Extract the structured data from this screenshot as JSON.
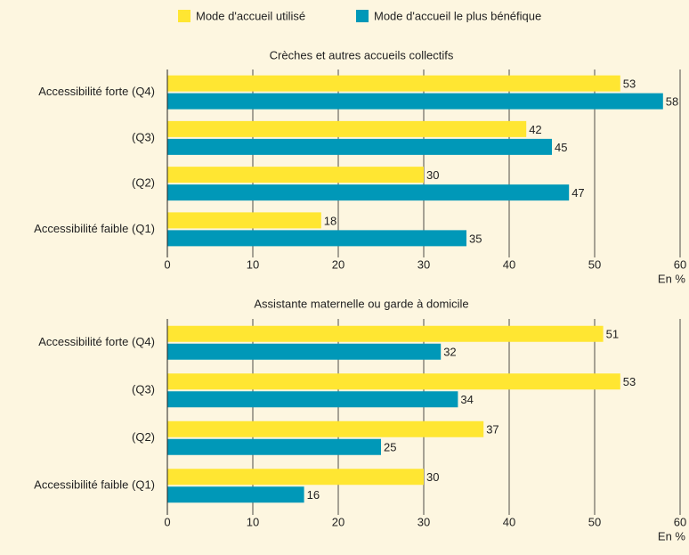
{
  "legend": [
    {
      "name": "Mode d'accueil utilisé",
      "color": "#ffe632"
    },
    {
      "name": "Mode d'accueil le plus bénéfique",
      "color": "#0098b8"
    }
  ],
  "chart_data": [
    {
      "type": "bar",
      "orientation": "horizontal",
      "title": "Crèches et autres accueils collectifs",
      "categories": [
        "Accessibilité forte (Q4)",
        "(Q3)",
        "(Q2)",
        "Accessibilité faible (Q1)"
      ],
      "series": [
        {
          "values": [
            53,
            42,
            30,
            18
          ]
        },
        {
          "values": [
            58,
            45,
            47,
            35
          ]
        }
      ],
      "xlim": [
        0,
        60
      ],
      "xticks": [
        0,
        10,
        20,
        30,
        40,
        50,
        60
      ],
      "xlabel": "En %",
      "grid": true
    },
    {
      "type": "bar",
      "orientation": "horizontal",
      "title": "Assistante maternelle ou garde à domicile",
      "categories": [
        "Accessibilité forte (Q4)",
        "(Q3)",
        "(Q2)",
        "Accessibilité faible (Q1)"
      ],
      "series": [
        {
          "values": [
            51,
            53,
            37,
            30
          ]
        },
        {
          "values": [
            32,
            34,
            25,
            16
          ]
        }
      ],
      "xlim": [
        0,
        60
      ],
      "xticks": [
        0,
        10,
        20,
        30,
        40,
        50,
        60
      ],
      "xlabel": "En %",
      "grid": true
    }
  ]
}
